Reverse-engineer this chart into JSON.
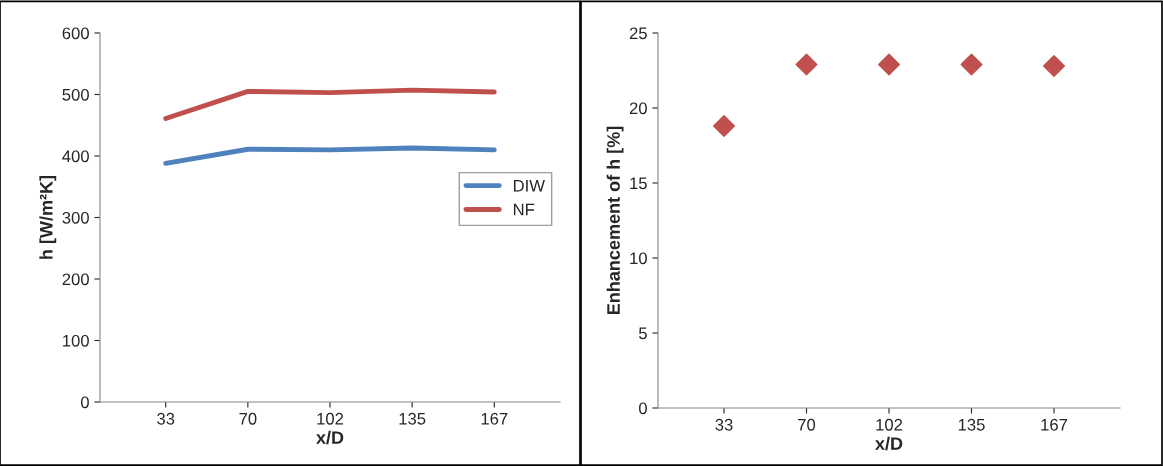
{
  "chart_data": [
    {
      "type": "line",
      "xlabel": "x/D",
      "ylabel": "h [W/m²K]",
      "categories": [
        "33",
        "70",
        "102",
        "135",
        "167"
      ],
      "ylim": [
        0,
        600
      ],
      "yticks": [
        0,
        100,
        200,
        300,
        400,
        500,
        600
      ],
      "grid": false,
      "legend": "right",
      "marker": "none",
      "line_style": "solid",
      "series": [
        {
          "name": "DIW",
          "color": "#4f81bd",
          "values": [
            388,
            411,
            410,
            413,
            410
          ]
        },
        {
          "name": "NF",
          "color": "#c0504d",
          "values": [
            461,
            505,
            503,
            507,
            504
          ]
        }
      ]
    },
    {
      "type": "scatter",
      "xlabel": "x/D",
      "ylabel": "Enhancement of h [%]",
      "categories": [
        "33",
        "70",
        "102",
        "135",
        "167"
      ],
      "ylim": [
        0,
        25
      ],
      "yticks": [
        0,
        5,
        10,
        15,
        20,
        25
      ],
      "grid": false,
      "legend": false,
      "marker": "diamond",
      "series": [
        {
          "color": "#c0504d",
          "values": [
            18.8,
            22.9,
            22.9,
            22.9,
            22.8
          ]
        }
      ]
    }
  ]
}
